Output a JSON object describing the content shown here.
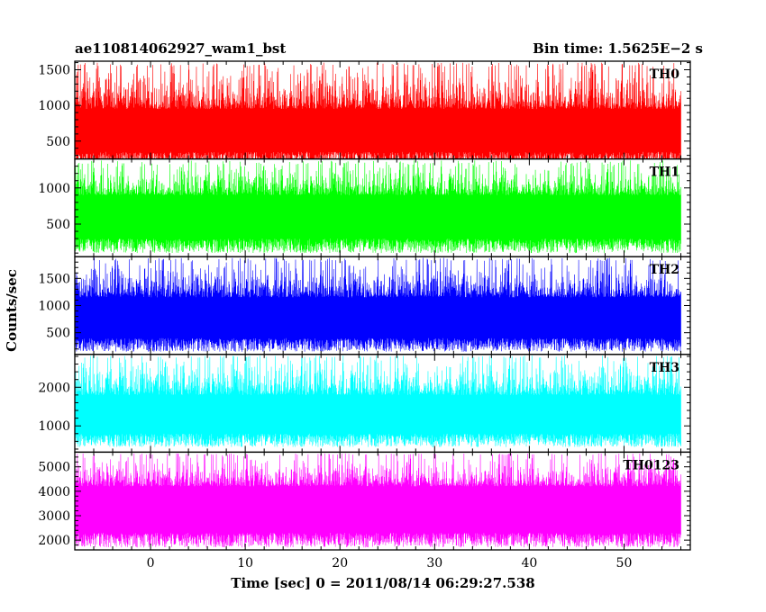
{
  "chart_data": {
    "type": "line",
    "title_left": "ae110814062927_wam1_bst",
    "title_right": "Bin time: 1.5625E−2 s",
    "xlabel": "Time [sec] 0 = 2011/08/14 06:29:27.538",
    "ylabel": "Counts/sec",
    "xlim": [
      -8,
      57
    ],
    "x_ticks": [
      0,
      10,
      20,
      30,
      40,
      50
    ],
    "x_range": [
      -8,
      56
    ],
    "bin_time": 0.015625,
    "panels": [
      {
        "name": "TH0",
        "color": "#ff0000",
        "ylim": [
          250,
          1620
        ],
        "y_ticks": [
          500,
          1000,
          1500
        ],
        "baseline": 650,
        "trough_range": [
          150,
          350
        ],
        "peak_range": [
          950,
          1600
        ]
      },
      {
        "name": "TH1",
        "color": "#00ff00",
        "ylim": [
          50,
          1400
        ],
        "y_ticks": [
          500,
          1000
        ],
        "baseline": 600,
        "trough_range": [
          100,
          300
        ],
        "peak_range": [
          900,
          1380
        ]
      },
      {
        "name": "TH2",
        "color": "#0000ff",
        "ylim": [
          100,
          1900
        ],
        "y_ticks": [
          500,
          1000,
          1500
        ],
        "baseline": 800,
        "trough_range": [
          150,
          400
        ],
        "peak_range": [
          1150,
          1880
        ]
      },
      {
        "name": "TH3",
        "color": "#00ffff",
        "ylim": [
          320,
          2850
        ],
        "y_ticks": [
          1000,
          2000
        ],
        "baseline": 1400,
        "trough_range": [
          450,
          800
        ],
        "peak_range": [
          1800,
          2820
        ]
      },
      {
        "name": "TH0123",
        "color": "#ff00ff",
        "ylim": [
          1600,
          5600
        ],
        "y_ticks": [
          2000,
          3000,
          4000,
          5000
        ],
        "baseline": 3500,
        "trough_range": [
          1700,
          2300
        ],
        "peak_range": [
          4200,
          5550
        ]
      }
    ]
  }
}
